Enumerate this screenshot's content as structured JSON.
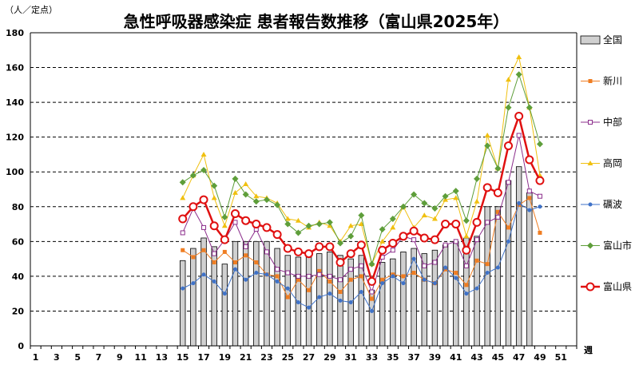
{
  "chart_data": {
    "type": "bar+line",
    "title": "急性呼吸器感染症 患者報告数推移（富山県2025年）",
    "ylabel": "（人／定点）",
    "xlabel": "週",
    "ylim": [
      0,
      180
    ],
    "y_ticks": [
      0,
      20,
      40,
      60,
      80,
      100,
      120,
      140,
      160,
      180
    ],
    "x_range": [
      1,
      52
    ],
    "x_tick_labels": [
      1,
      3,
      5,
      7,
      9,
      11,
      13,
      15,
      17,
      19,
      21,
      23,
      25,
      27,
      29,
      31,
      33,
      35,
      37,
      39,
      41,
      43,
      45,
      47,
      49,
      51
    ],
    "grid": "horizontal-dashed",
    "legend_position": "right",
    "weeks": [
      15,
      16,
      17,
      18,
      19,
      20,
      21,
      22,
      23,
      24,
      25,
      26,
      27,
      28,
      29,
      30,
      31,
      32,
      33,
      34,
      35,
      36,
      37,
      38,
      39,
      40,
      41,
      42,
      43,
      44,
      45,
      46,
      47,
      48,
      49
    ],
    "series": [
      {
        "name": "全国",
        "kind": "bar",
        "color": "#d0d0d0",
        "values": [
          49,
          56,
          62,
          57,
          47,
          60,
          60,
          60,
          60,
          56,
          52,
          51,
          52,
          53,
          54,
          52,
          50,
          52,
          32,
          48,
          50,
          54,
          56,
          53,
          55,
          58,
          60,
          62,
          63,
          80,
          80,
          95,
          103,
          88,
          null
        ]
      },
      {
        "name": "新川",
        "kind": "line",
        "marker": "square-filled",
        "color": "#ef7d22",
        "values": [
          55,
          51,
          55,
          48,
          54,
          48,
          52,
          48,
          41,
          40,
          28,
          38,
          32,
          43,
          37,
          31,
          38,
          40,
          27,
          38,
          41,
          40,
          42,
          38,
          36,
          44,
          42,
          35,
          49,
          47,
          77,
          68,
          81,
          85,
          65
        ]
      },
      {
        "name": "中部",
        "kind": "line",
        "marker": "square-open",
        "color": "#8c2f8c",
        "values": [
          65,
          79,
          68,
          53,
          61,
          71,
          57,
          67,
          54,
          44,
          42,
          40,
          40,
          41,
          40,
          38,
          44,
          46,
          31,
          51,
          55,
          63,
          61,
          46,
          48,
          58,
          60,
          46,
          61,
          71,
          74,
          94,
          121,
          89,
          86
        ]
      },
      {
        "name": "高岡",
        "kind": "line",
        "marker": "triangle",
        "color": "#f0c010",
        "values": [
          85,
          98,
          110,
          85,
          69,
          88,
          93,
          86,
          85,
          82,
          73,
          72,
          68,
          71,
          69,
          60,
          69,
          70,
          47,
          60,
          68,
          80,
          68,
          75,
          73,
          84,
          85,
          63,
          83,
          121,
          102,
          153,
          166,
          137,
          98
        ]
      },
      {
        "name": "礪波",
        "kind": "line",
        "marker": "circle-small",
        "color": "#3f72c8",
        "values": [
          33,
          36,
          41,
          37,
          30,
          44,
          38,
          42,
          41,
          37,
          33,
          25,
          22,
          28,
          30,
          26,
          25,
          31,
          20,
          36,
          40,
          36,
          50,
          38,
          36,
          45,
          39,
          30,
          33,
          42,
          45,
          60,
          82,
          78,
          80
        ]
      },
      {
        "name": "富山市",
        "kind": "line",
        "marker": "diamond",
        "color": "#5e9e3a",
        "values": [
          94,
          98,
          101,
          92,
          74,
          96,
          87,
          83,
          84,
          81,
          70,
          65,
          69,
          70,
          71,
          59,
          63,
          75,
          47,
          67,
          73,
          80,
          87,
          82,
          79,
          86,
          89,
          72,
          96,
          115,
          102,
          137,
          156,
          137,
          116
        ]
      },
      {
        "name": "富山県",
        "kind": "line",
        "marker": "circle-open-large",
        "color": "#e01010",
        "values": [
          73,
          80,
          84,
          69,
          61,
          76,
          72,
          70,
          68,
          64,
          56,
          54,
          53,
          57,
          57,
          48,
          53,
          58,
          37,
          55,
          59,
          63,
          66,
          62,
          61,
          70,
          70,
          55,
          71,
          91,
          88,
          115,
          132,
          107,
          95
        ]
      }
    ]
  }
}
